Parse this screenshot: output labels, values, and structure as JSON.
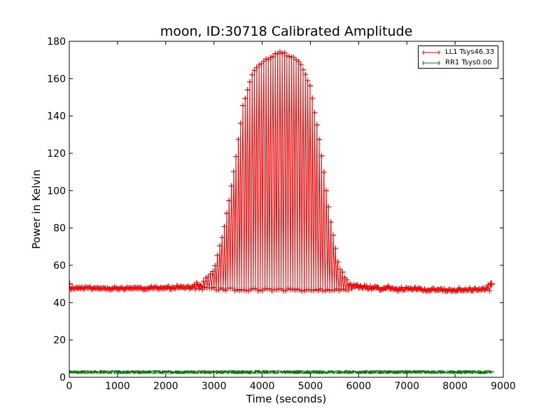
{
  "chart_data": {
    "type": "line",
    "title": "moon, ID:30718 Calibrated Amplitude",
    "xlabel": "Time (seconds)",
    "ylabel": "Power in Kelvin",
    "xlim": [
      0,
      9000
    ],
    "ylim": [
      0,
      180
    ],
    "xticks": [
      0,
      1000,
      2000,
      3000,
      4000,
      5000,
      6000,
      7000,
      8000,
      9000
    ],
    "yticks": [
      0,
      20,
      40,
      60,
      80,
      100,
      120,
      140,
      160,
      180
    ],
    "grid": false,
    "legend_position": "top-right",
    "series": [
      {
        "name": "LL1 Tsys46.33",
        "color": "#ff0000",
        "marker": "plus",
        "description": "Oscillating amplitude; baseline ~47 K, envelope peaking ~174 K near t=4400 s",
        "envelope_x": [
          0,
          500,
          1000,
          1500,
          2000,
          2500,
          2800,
          3000,
          3200,
          3400,
          3600,
          3800,
          4000,
          4200,
          4400,
          4600,
          4800,
          5000,
          5200,
          5400,
          5600,
          5800,
          6000,
          6500,
          7000,
          7500,
          8000,
          8500,
          8750
        ],
        "envelope_upper": [
          48.5,
          48,
          48,
          48,
          48.5,
          49,
          52,
          58,
          78,
          108,
          145,
          163,
          169,
          172,
          174,
          172,
          168,
          155,
          125,
          86,
          58,
          51,
          50,
          48.5,
          48,
          47.5,
          47.5,
          47.5,
          50
        ],
        "baseline": [
          47.5,
          47.5,
          47.5,
          47.5,
          47.5,
          47.5,
          47.5,
          47.5,
          47.3,
          47,
          47,
          47,
          47,
          47,
          47,
          47,
          47,
          47,
          47,
          47,
          47,
          47,
          47.2,
          47,
          46.7,
          46.5,
          46.3,
          46.2,
          46.2
        ]
      },
      {
        "name": "RR1 Tsys0.00",
        "color": "#008000",
        "marker": "plus",
        "description": "Near-constant noise band around 2–3 K across the full time range",
        "x": [
          0,
          1000,
          2000,
          3000,
          4000,
          5000,
          6000,
          7000,
          8000,
          8750
        ],
        "y_low": [
          1.8,
          1.8,
          1.8,
          1.8,
          1.8,
          1.8,
          1.8,
          1.8,
          1.8,
          1.8
        ],
        "y_high": [
          3.8,
          3.8,
          3.8,
          3.8,
          3.9,
          3.8,
          3.8,
          3.8,
          3.8,
          3.8
        ]
      }
    ]
  }
}
